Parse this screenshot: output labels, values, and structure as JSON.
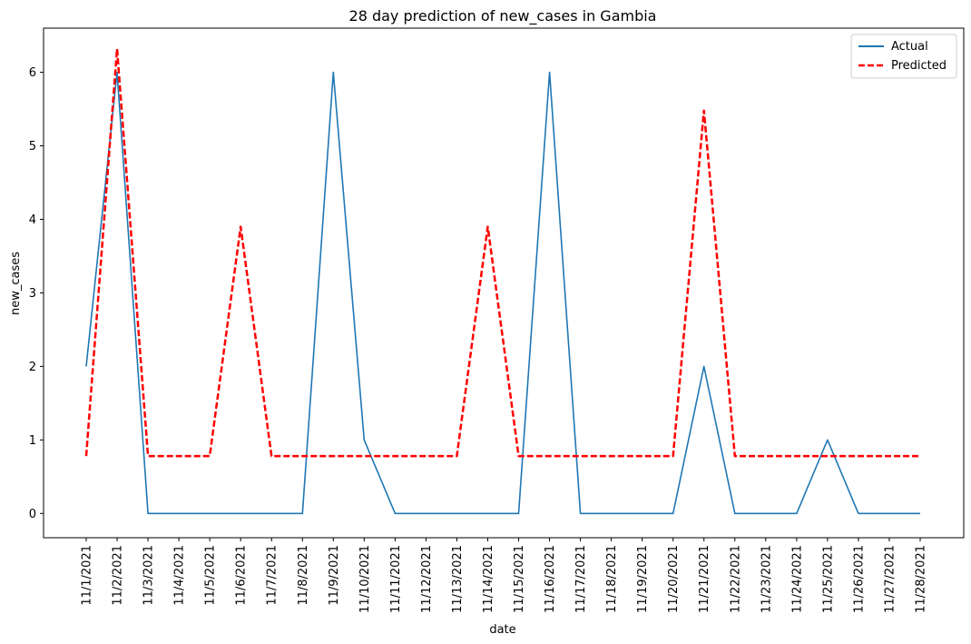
{
  "chart_data": {
    "type": "line",
    "title": "28 day prediction of new_cases in Gambia",
    "xlabel": "date",
    "ylabel": "new_cases",
    "ylim": [
      -0.33,
      6.6
    ],
    "yticks": [
      0,
      1,
      2,
      3,
      4,
      5,
      6
    ],
    "grid": false,
    "legend_position": "top-right",
    "categories": [
      "11/1/2021",
      "11/2/2021",
      "11/3/2021",
      "11/4/2021",
      "11/5/2021",
      "11/6/2021",
      "11/7/2021",
      "11/8/2021",
      "11/9/2021",
      "11/10/2021",
      "11/11/2021",
      "11/12/2021",
      "11/13/2021",
      "11/14/2021",
      "11/15/2021",
      "11/16/2021",
      "11/17/2021",
      "11/18/2021",
      "11/19/2021",
      "11/20/2021",
      "11/21/2021",
      "11/22/2021",
      "11/23/2021",
      "11/24/2021",
      "11/25/2021",
      "11/26/2021",
      "11/27/2021",
      "11/28/2021"
    ],
    "series": [
      {
        "name": "Actual",
        "color": "#1f77b4",
        "style": "solid",
        "values": [
          2,
          6,
          0,
          0,
          0,
          0,
          0,
          0,
          6,
          1,
          0,
          0,
          0,
          0,
          0,
          6,
          0,
          0,
          0,
          0,
          2,
          0,
          0,
          0,
          1,
          0,
          0,
          0
        ]
      },
      {
        "name": "Predicted",
        "color": "#ff0000",
        "style": "dashed",
        "values": [
          0.78,
          6.32,
          0.78,
          0.78,
          0.78,
          3.9,
          0.78,
          0.78,
          0.78,
          0.78,
          0.78,
          0.78,
          0.78,
          3.9,
          0.78,
          0.78,
          0.78,
          0.78,
          0.78,
          0.78,
          5.48,
          0.78,
          0.78,
          0.78,
          0.78,
          0.78,
          0.78,
          0.78
        ]
      }
    ]
  }
}
